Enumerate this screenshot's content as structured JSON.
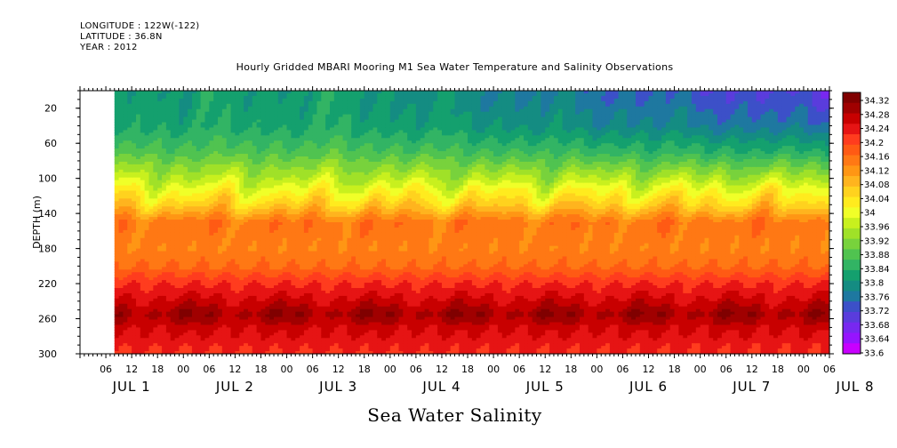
{
  "header": {
    "longitude": "LONGITUDE : 122W(-122)",
    "latitude": "LATITUDE : 36.8N",
    "year": "YEAR : 2012"
  },
  "chart_data": {
    "type": "heatmap",
    "title": "Hourly Gridded MBARI Mooring M1 Sea Water Temperature and Salinity Observations",
    "xlabel": "Sea Water Salinity",
    "ylabel": "DEPTH (m)",
    "y_axis": {
      "range": [
        300,
        0
      ],
      "reversed": true,
      "tick_labels": [
        "20",
        "60",
        "100",
        "140",
        "180",
        "220",
        "260",
        "300"
      ],
      "tick_values": [
        20,
        60,
        100,
        140,
        180,
        220,
        260,
        300
      ]
    },
    "x_axis": {
      "range_hours": [
        0,
        174
      ],
      "hour_tick_labels": [
        "06",
        "12",
        "18",
        "00",
        "06",
        "12",
        "18",
        "00",
        "06",
        "12",
        "18",
        "00",
        "06",
        "12",
        "18",
        "00",
        "06",
        "12",
        "18",
        "00",
        "06",
        "12",
        "18",
        "00",
        "06",
        "12",
        "18",
        "00",
        "06",
        "12",
        "18",
        "00"
      ],
      "day_labels": [
        "JUL 1",
        "JUL 2",
        "JUL 3",
        "JUL 4",
        "JUL 5",
        "JUL 6",
        "JUL 7",
        "JUL 8"
      ]
    },
    "data_start_hour": 8,
    "colorbar": {
      "levels": [
        "34.32",
        "34.28",
        "34.24",
        "34.2",
        "34.16",
        "34.12",
        "34.08",
        "34.04",
        "34",
        "33.96",
        "33.92",
        "33.88",
        "33.84",
        "33.8",
        "33.76",
        "33.72",
        "33.68",
        "33.64",
        "33.6"
      ],
      "colors": [
        "#800000",
        "#a00000",
        "#c80000",
        "#e61414",
        "#ff3c1e",
        "#ff5a14",
        "#ff7814",
        "#ff9614",
        "#ffb41e",
        "#ffd21e",
        "#ffeb1e",
        "#f0ff28",
        "#c8f01e",
        "#a0e128",
        "#78d23c",
        "#50c350",
        "#32b464",
        "#14a06e",
        "#148c82",
        "#1e78a0",
        "#3c50c8",
        "#5a3cdc",
        "#7828f0",
        "#9614ff",
        "#c800ff"
      ]
    },
    "salinity_profile": [
      {
        "depth": 10,
        "value": 33.82
      },
      {
        "depth": 40,
        "value": 33.83
      },
      {
        "depth": 70,
        "value": 33.88
      },
      {
        "depth": 100,
        "value": 33.96
      },
      {
        "depth": 130,
        "value": 34.06
      },
      {
        "depth": 150,
        "value": 34.15
      },
      {
        "depth": 180,
        "value": 34.14
      },
      {
        "depth": 200,
        "value": 34.16
      },
      {
        "depth": 220,
        "value": 34.22
      },
      {
        "depth": 240,
        "value": 34.26
      },
      {
        "depth": 255,
        "value": 34.3
      },
      {
        "depth": 270,
        "value": 34.26
      },
      {
        "depth": 290,
        "value": 34.23
      },
      {
        "depth": 300,
        "value": 34.22
      }
    ]
  }
}
